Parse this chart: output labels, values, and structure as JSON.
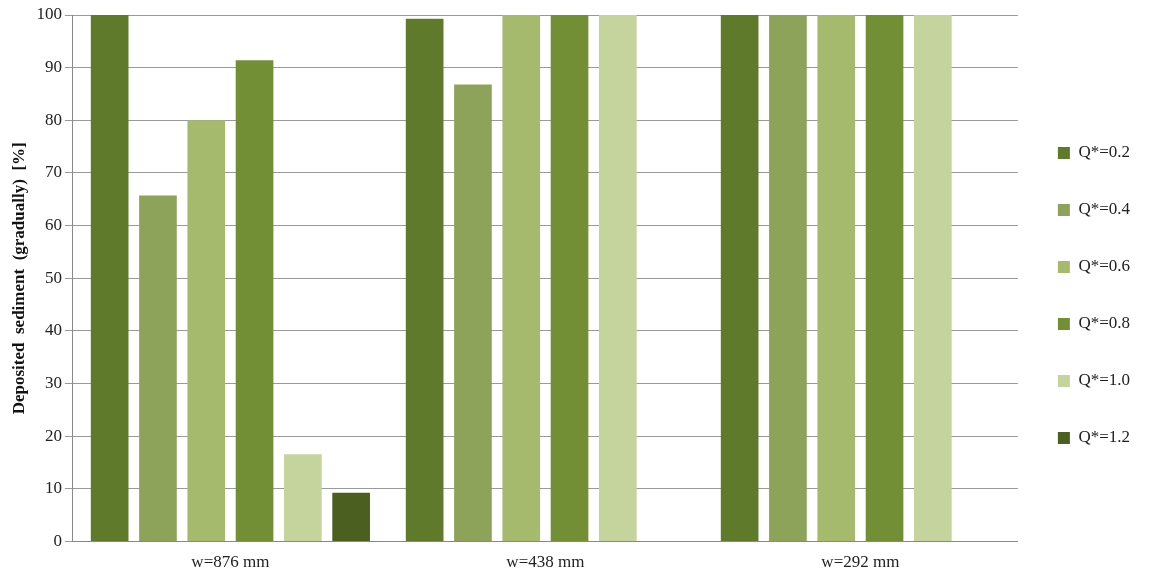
{
  "chart_data": {
    "type": "bar",
    "ylabel": "Deposited  sediment  (gradually)  [%]",
    "categories": [
      "w=876 mm",
      "w=438 mm",
      "w=292 mm"
    ],
    "series": [
      {
        "name": "Q*=0.2",
        "color": "#5e7a2a",
        "values": [
          100,
          99.3,
          100
        ]
      },
      {
        "name": "Q*=0.4",
        "color": "#8da35a",
        "values": [
          65.7,
          86.8,
          100
        ]
      },
      {
        "name": "Q*=0.6",
        "color": "#a6ba6e",
        "values": [
          80,
          100,
          100
        ]
      },
      {
        "name": "Q*=0.8",
        "color": "#738f36",
        "values": [
          91.4,
          100,
          100
        ]
      },
      {
        "name": "Q*=1.0",
        "color": "#c5d39c",
        "values": [
          16.6,
          100,
          100
        ]
      },
      {
        "name": "Q*=1.2",
        "color": "#4a5f20",
        "values": [
          9.3,
          null,
          null
        ]
      }
    ],
    "ylim": [
      0,
      100
    ],
    "yticks": [
      0,
      10,
      20,
      30,
      40,
      50,
      60,
      70,
      80,
      90,
      100
    ],
    "grid": "y",
    "legend": "right"
  }
}
